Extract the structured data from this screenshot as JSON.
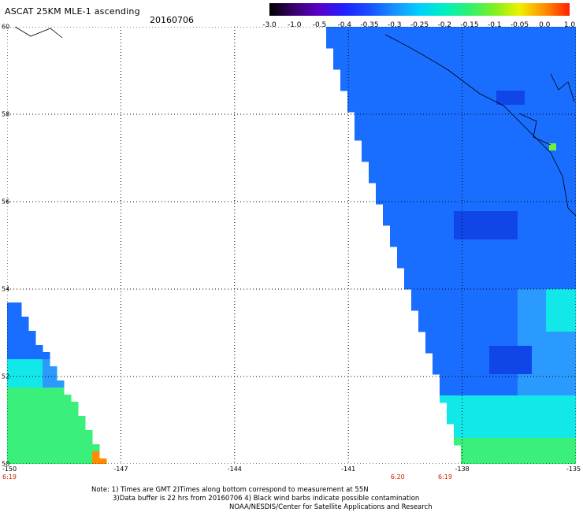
{
  "header": {
    "title": "ASCAT 25KM MLE-1 ascending",
    "date": "20160706"
  },
  "colorbar": {
    "labels": [
      "-3.0",
      "-1.0",
      "-0.5",
      "-0.4",
      "-0.35",
      "-0.3",
      "-0.25",
      "-0.2",
      "-0.15",
      "-0.1",
      "-0.05",
      "0.0",
      "1.0"
    ],
    "colors": [
      "#000000",
      "#3a0070",
      "#5a00c8",
      "#2020ff",
      "#1850ff",
      "#1890ff",
      "#00d0ff",
      "#00f0c0",
      "#30f070",
      "#80f020",
      "#f0f000",
      "#ff9000",
      "#ff2000"
    ]
  },
  "axes": {
    "lat_labels": [
      "60",
      "58",
      "56",
      "54",
      "52",
      "50"
    ],
    "lon_labels": [
      "-150",
      "-147",
      "-144",
      "-141",
      "-138",
      "-135"
    ],
    "lat_range": [
      50,
      60
    ],
    "lon_range": [
      -150,
      -135
    ],
    "grid": "dotted"
  },
  "times": [
    {
      "lon": -150,
      "label": "6:19"
    },
    {
      "lon": -139.7,
      "label": "6:20"
    },
    {
      "lon": -138.45,
      "label": "6:19"
    }
  ],
  "swaths": {
    "colors": {
      "deep": "#1045e8",
      "main": "#1a6eff",
      "light": "#2a9aff",
      "cyan": "#12e8e8",
      "green": "#3af07a",
      "lime": "#70f040",
      "orange": "#ff8c00"
    }
  },
  "footer": {
    "line1": "Note: 1) Times are GMT 2)Times along bottom correspond to measurement at 55N",
    "line2": "3)Data buffer is 22 hrs from 20160706 4) Black wind barbs indicate possible contamination",
    "line3": "NOAA/NESDIS/Center for Satellite Applications and Research"
  }
}
